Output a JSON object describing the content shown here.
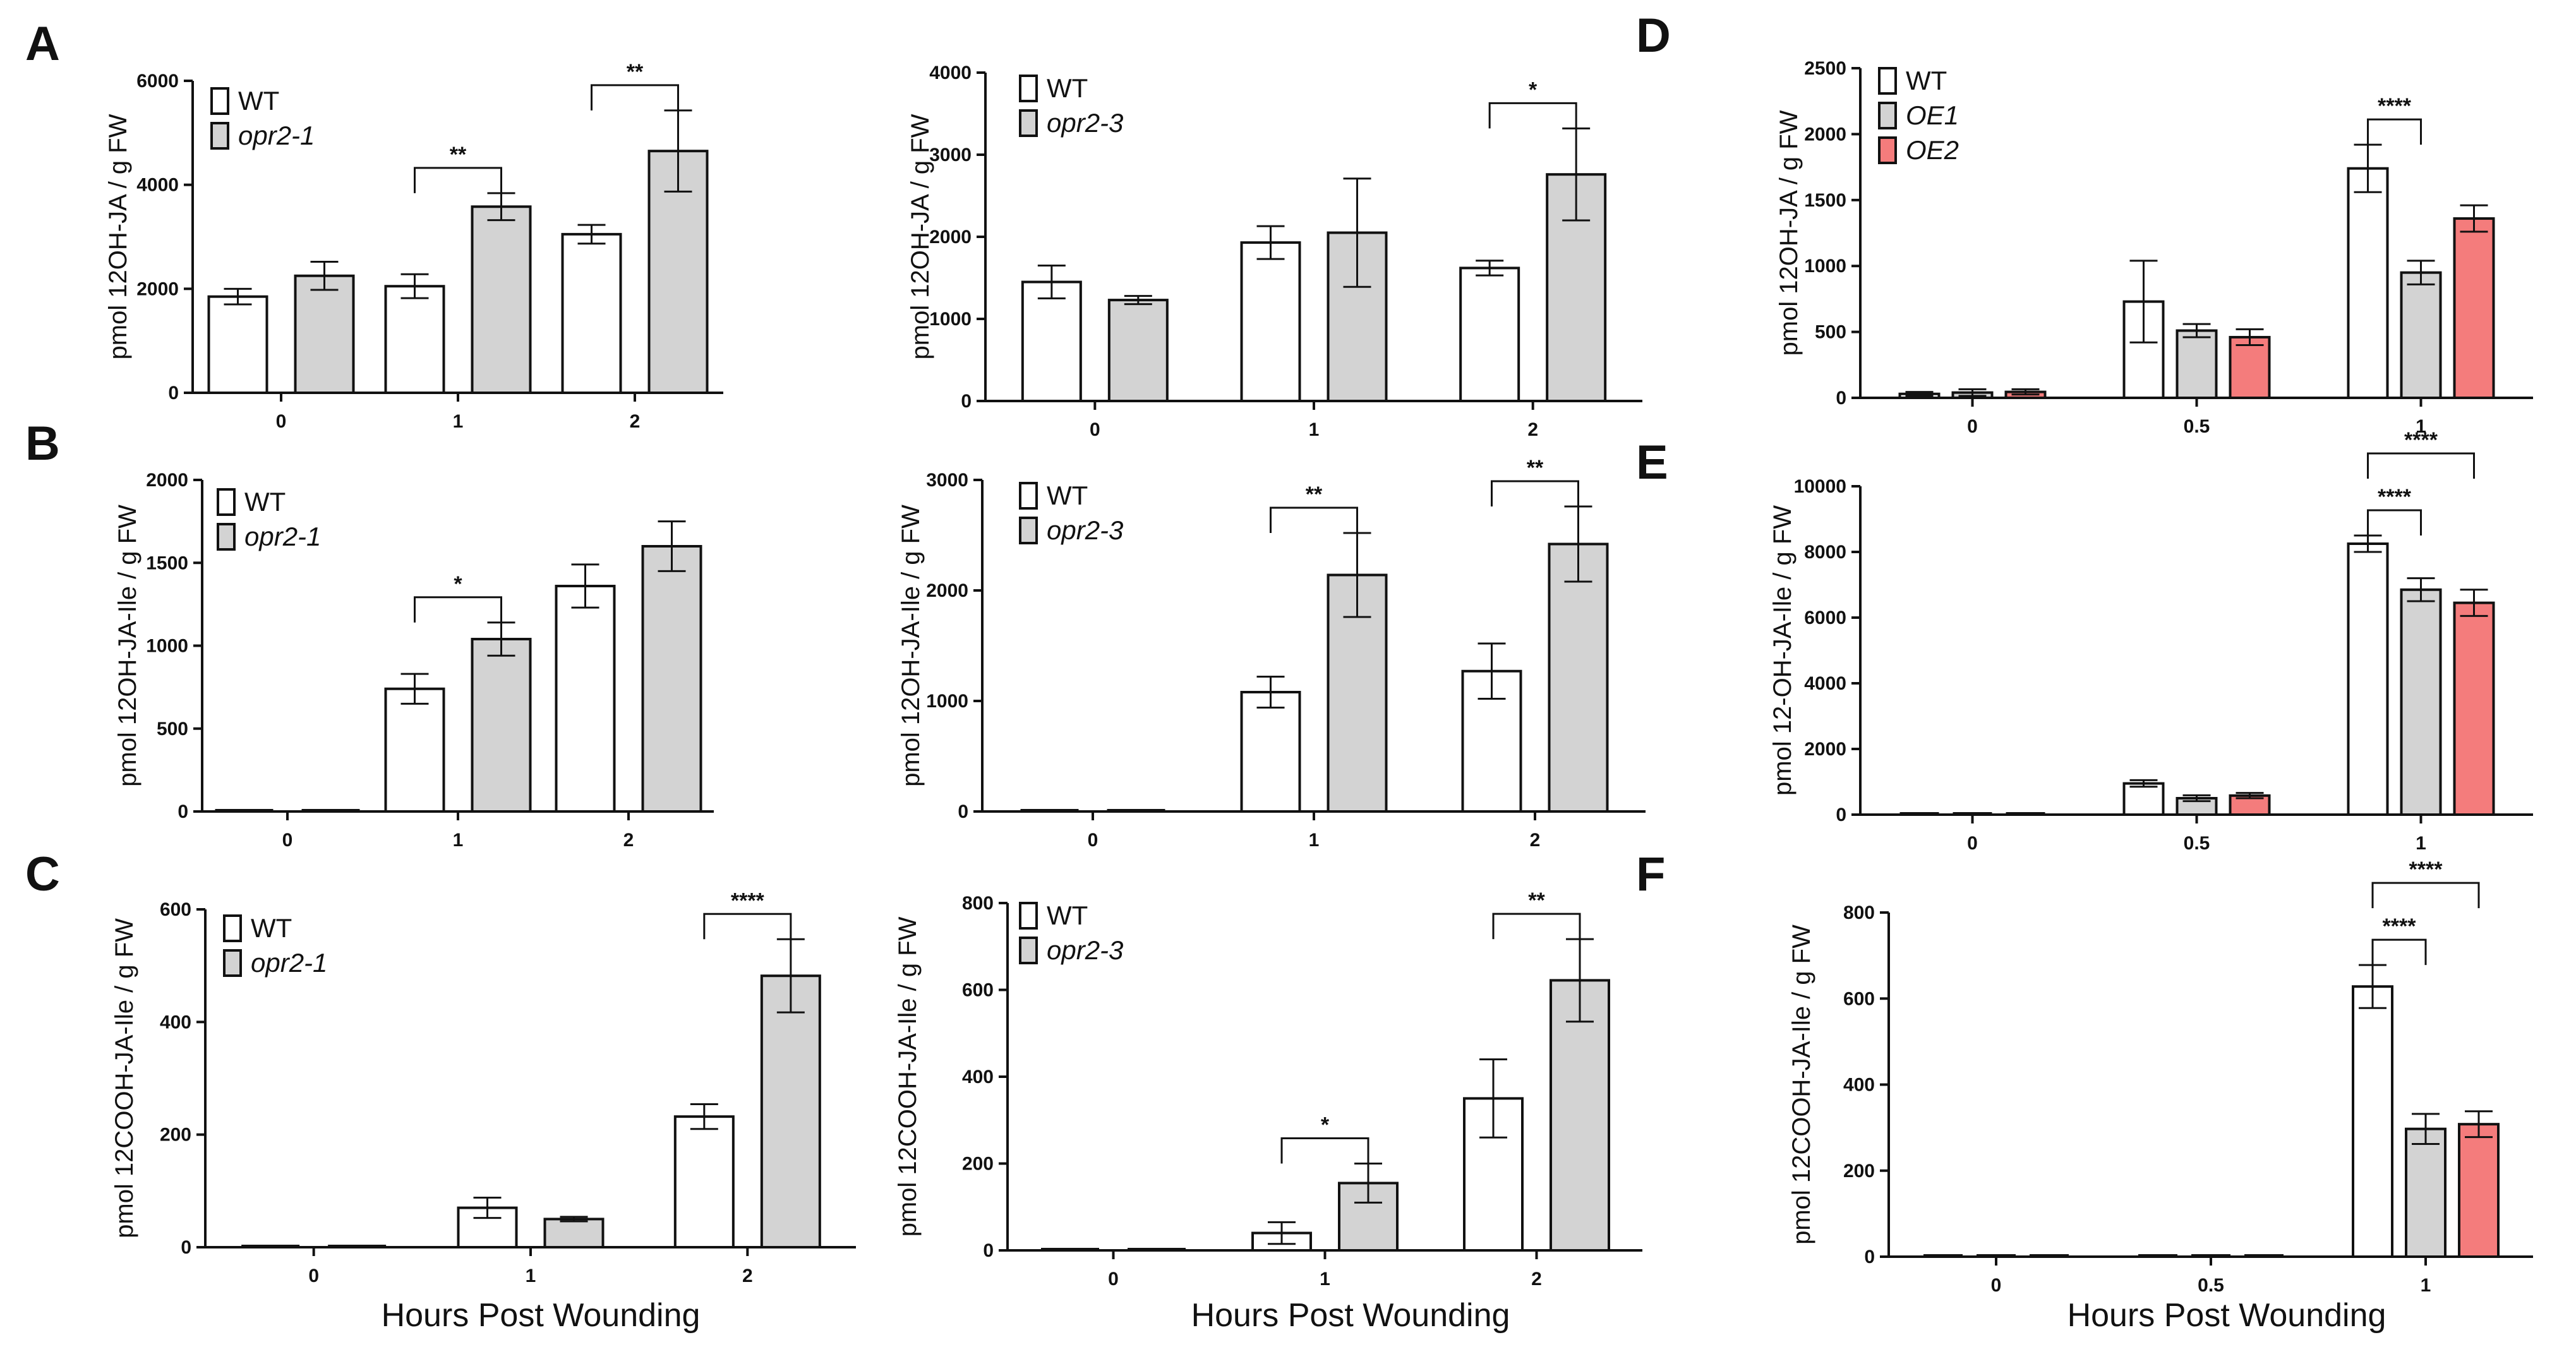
{
  "figure": {
    "x_axis_title": "Hours Post Wounding"
  },
  "colors": {
    "wt": "#ffffff",
    "mutant": "#d3d3d3",
    "oe2": "#f47c7c",
    "stroke": "#111111"
  },
  "chart_data": [
    {
      "panel_label": "A",
      "type": "bar",
      "ylabel": "pmol 12OH-JA / g FW",
      "categories": [
        "0",
        "1",
        "2"
      ],
      "ylim": [
        0,
        6000
      ],
      "yticks": [
        0,
        2000,
        4000,
        6000
      ],
      "series": [
        {
          "name": "WT",
          "italic": false,
          "color": "#ffffff",
          "values": [
            1850,
            2050,
            3050
          ],
          "errors": [
            150,
            230,
            180
          ]
        },
        {
          "name": "opr2-1",
          "italic": true,
          "color": "#d3d3d3",
          "values": [
            2250,
            3580,
            4650
          ],
          "errors": [
            270,
            260,
            780
          ]
        }
      ],
      "significance": [
        {
          "category": 1,
          "from": 0,
          "to": 1,
          "label": "**"
        },
        {
          "category": 2,
          "from": 0,
          "to": 1,
          "label": "**"
        }
      ]
    },
    {
      "panel_label": "",
      "type": "bar",
      "ylabel": "pmol 12OH-JA / g FW",
      "categories": [
        "0",
        "1",
        "2"
      ],
      "ylim": [
        0,
        4000
      ],
      "yticks": [
        0,
        1000,
        2000,
        3000,
        4000
      ],
      "series": [
        {
          "name": "WT",
          "italic": false,
          "color": "#ffffff",
          "values": [
            1450,
            1930,
            1620
          ],
          "errors": [
            200,
            200,
            90
          ]
        },
        {
          "name": "opr2-3",
          "italic": true,
          "color": "#d3d3d3",
          "values": [
            1230,
            2050,
            2760
          ],
          "errors": [
            50,
            660,
            560
          ]
        }
      ],
      "significance": [
        {
          "category": 2,
          "from": 0,
          "to": 1,
          "label": "*"
        }
      ]
    },
    {
      "panel_label": "D",
      "type": "bar",
      "ylabel": "pmol 12OH-JA / g FW",
      "categories": [
        "0",
        "0.5",
        "1"
      ],
      "ylim": [
        0,
        2500
      ],
      "yticks": [
        0,
        500,
        1000,
        1500,
        2000,
        2500
      ],
      "series": [
        {
          "name": "WT",
          "italic": false,
          "color": "#ffffff",
          "values": [
            30,
            730,
            1740
          ],
          "errors": [
            15,
            310,
            180
          ]
        },
        {
          "name": "OE1",
          "italic": true,
          "color": "#d3d3d3",
          "values": [
            40,
            510,
            950
          ],
          "errors": [
            25,
            50,
            90
          ]
        },
        {
          "name": "OE2",
          "italic": true,
          "color": "#f47c7c",
          "values": [
            45,
            460,
            1360
          ],
          "errors": [
            20,
            60,
            100
          ]
        }
      ],
      "significance": [
        {
          "category": 2,
          "from": 0,
          "to": 1,
          "label": "****"
        }
      ]
    },
    {
      "panel_label": "B",
      "type": "bar",
      "ylabel": "pmol 12OH-JA-Ile / g FW",
      "categories": [
        "0",
        "1",
        "2"
      ],
      "ylim": [
        0,
        2000
      ],
      "yticks": [
        0,
        500,
        1000,
        1500,
        2000
      ],
      "series": [
        {
          "name": "WT",
          "italic": false,
          "color": "#ffffff",
          "values": [
            0,
            740,
            1360
          ],
          "errors": [
            0,
            90,
            130
          ]
        },
        {
          "name": "opr2-1",
          "italic": true,
          "color": "#d3d3d3",
          "values": [
            0,
            1040,
            1600
          ],
          "errors": [
            0,
            100,
            150
          ]
        }
      ],
      "significance": [
        {
          "category": 1,
          "from": 0,
          "to": 1,
          "label": "*"
        }
      ]
    },
    {
      "panel_label": "",
      "type": "bar",
      "ylabel": "pmol 12OH-JA-Ile / g FW",
      "categories": [
        "0",
        "1",
        "2"
      ],
      "ylim": [
        0,
        3000
      ],
      "yticks": [
        0,
        1000,
        2000,
        3000
      ],
      "series": [
        {
          "name": "WT",
          "italic": false,
          "color": "#ffffff",
          "values": [
            0,
            1080,
            1270
          ],
          "errors": [
            0,
            140,
            250
          ]
        },
        {
          "name": "opr2-3",
          "italic": true,
          "color": "#d3d3d3",
          "values": [
            0,
            2140,
            2420
          ],
          "errors": [
            0,
            380,
            340
          ]
        }
      ],
      "significance": [
        {
          "category": 1,
          "from": 0,
          "to": 1,
          "label": "**"
        },
        {
          "category": 2,
          "from": 0,
          "to": 1,
          "label": "**"
        }
      ]
    },
    {
      "panel_label": "E",
      "type": "bar",
      "ylabel": "pmol 12-OH-JA-Ile / g FW",
      "categories": [
        "0",
        "0.5",
        "1"
      ],
      "ylim": [
        0,
        10000
      ],
      "yticks": [
        0,
        2000,
        4000,
        6000,
        8000,
        10000
      ],
      "series": [
        {
          "name": "WT",
          "italic": false,
          "color": "#ffffff",
          "values": [
            0,
            950,
            8250
          ],
          "errors": [
            0,
            100,
            250
          ]
        },
        {
          "name": "OE1",
          "italic": true,
          "color": "#d3d3d3",
          "values": [
            0,
            500,
            6850
          ],
          "errors": [
            0,
            90,
            350
          ]
        },
        {
          "name": "OE2",
          "italic": true,
          "color": "#f47c7c",
          "values": [
            0,
            580,
            6450
          ],
          "errors": [
            0,
            80,
            400
          ]
        }
      ],
      "significance": [
        {
          "category": 2,
          "from": 0,
          "to": 1,
          "label": "****"
        },
        {
          "category": 2,
          "from": 0,
          "to": 2,
          "label": "****"
        }
      ]
    },
    {
      "panel_label": "C",
      "type": "bar",
      "ylabel": "pmol 12COOH-JA-Ile / g FW",
      "categories": [
        "0",
        "1",
        "2"
      ],
      "ylim": [
        0,
        600
      ],
      "yticks": [
        0,
        200,
        400,
        600
      ],
      "series": [
        {
          "name": "WT",
          "italic": false,
          "color": "#ffffff",
          "values": [
            0,
            70,
            232
          ],
          "errors": [
            0,
            18,
            22
          ]
        },
        {
          "name": "opr2-1",
          "italic": true,
          "color": "#d3d3d3",
          "values": [
            0,
            50,
            482
          ],
          "errors": [
            0,
            4,
            65
          ]
        }
      ],
      "significance": [
        {
          "category": 2,
          "from": 0,
          "to": 1,
          "label": "****"
        }
      ]
    },
    {
      "panel_label": "",
      "type": "bar",
      "ylabel": "pmol 12COOH-JA-Ile / g FW",
      "categories": [
        "0",
        "1",
        "2"
      ],
      "ylim": [
        0,
        800
      ],
      "yticks": [
        0,
        200,
        400,
        600,
        800
      ],
      "series": [
        {
          "name": "WT",
          "italic": false,
          "color": "#ffffff",
          "values": [
            0,
            40,
            350
          ],
          "errors": [
            0,
            25,
            90
          ]
        },
        {
          "name": "opr2-3",
          "italic": true,
          "color": "#d3d3d3",
          "values": [
            0,
            155,
            622
          ],
          "errors": [
            0,
            45,
            95
          ]
        }
      ],
      "significance": [
        {
          "category": 1,
          "from": 0,
          "to": 1,
          "label": "*"
        },
        {
          "category": 2,
          "from": 0,
          "to": 1,
          "label": "**"
        }
      ]
    },
    {
      "panel_label": "F",
      "type": "bar",
      "ylabel": "pmol 12COOH-JA-Ile / g FW",
      "categories": [
        "0",
        "0.5",
        "1"
      ],
      "ylim": [
        0,
        800
      ],
      "yticks": [
        0,
        200,
        400,
        600,
        800
      ],
      "series": [
        {
          "name": "WT",
          "italic": false,
          "color": "#ffffff",
          "values": [
            0,
            0,
            628
          ],
          "errors": [
            0,
            0,
            50
          ]
        },
        {
          "name": "OE1",
          "italic": true,
          "color": "#d3d3d3",
          "values": [
            0,
            0,
            297
          ],
          "errors": [
            0,
            0,
            35
          ]
        },
        {
          "name": "OE2",
          "italic": true,
          "color": "#f47c7c",
          "values": [
            0,
            0,
            308
          ],
          "errors": [
            0,
            0,
            30
          ]
        }
      ],
      "significance": [
        {
          "category": 2,
          "from": 0,
          "to": 1,
          "label": "****"
        },
        {
          "category": 2,
          "from": 0,
          "to": 2,
          "label": "****"
        }
      ]
    }
  ]
}
